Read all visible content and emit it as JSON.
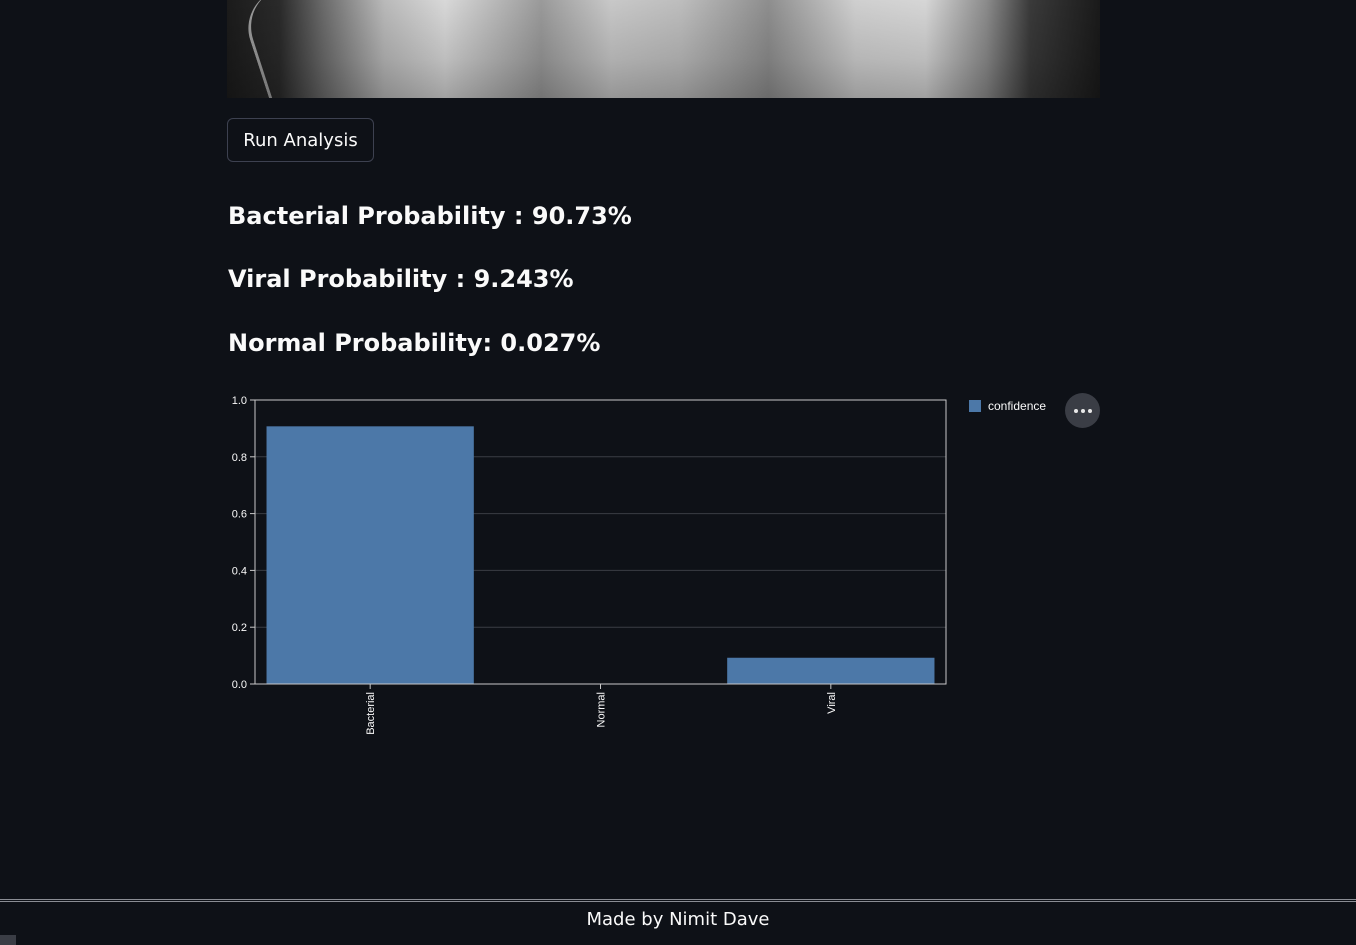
{
  "run_button": {
    "label": "Run Analysis"
  },
  "results": [
    {
      "label": "Bacterial Probability : ",
      "value": "90.73%"
    },
    {
      "label": "Viral Probability : ",
      "value": "9.243%"
    },
    {
      "label": "Normal Probability: ",
      "value": "0.027%"
    }
  ],
  "chart_data": {
    "type": "bar",
    "categories": [
      "Bacterial",
      "Normal",
      "Viral"
    ],
    "series": [
      {
        "name": "confidence",
        "values": [
          0.9073,
          0.00027,
          0.09243
        ]
      }
    ],
    "yticks": [
      "0.0",
      "0.2",
      "0.4",
      "0.6",
      "0.8",
      "1.0"
    ],
    "ylim": [
      0,
      1
    ],
    "legend": "top-right",
    "grid": true,
    "bar_color": "#4c78a8"
  },
  "footer": {
    "text": "Made by Nimit Dave"
  },
  "colors": {
    "background": "#0e1117",
    "text": "#fafafa"
  }
}
